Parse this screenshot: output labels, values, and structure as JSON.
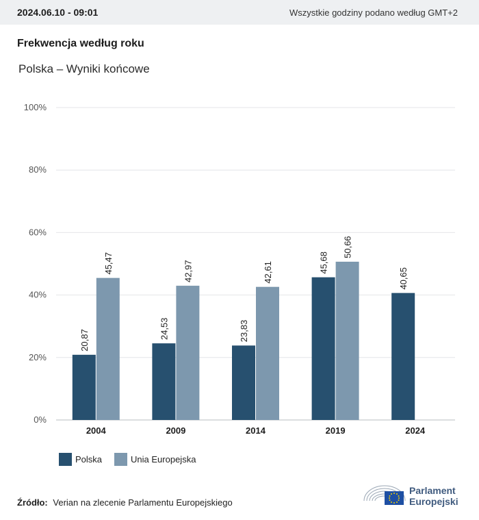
{
  "header": {
    "datetime": "2024.06.10 - 09:01",
    "timezone_note": "Wszystkie godziny podano według GMT+2"
  },
  "title": "Frekwencja według roku",
  "subtitle": "Polska – Wyniki końcowe",
  "chart_data": {
    "type": "bar",
    "categories": [
      "2004",
      "2009",
      "2014",
      "2019",
      "2024"
    ],
    "series": [
      {
        "name": "Polska",
        "color": "#27506f",
        "values": [
          20.87,
          24.53,
          23.83,
          45.68,
          40.65
        ]
      },
      {
        "name": "Unia Europejska",
        "color": "#7d98ae",
        "values": [
          45.47,
          42.97,
          42.61,
          50.66,
          null
        ]
      }
    ],
    "value_labels": {
      "Polska": [
        "20,87",
        "24,53",
        "23,83",
        "45,68",
        "40,65"
      ],
      "Unia Europejska": [
        "45,47",
        "42,97",
        "42,61",
        "50,66",
        ""
      ]
    },
    "y_ticks": [
      "0%",
      "20%",
      "40%",
      "60%",
      "80%",
      "100%"
    ],
    "ylim": [
      0,
      100
    ],
    "grid": true,
    "legend_position": "bottom-left"
  },
  "legend": [
    {
      "label": "Polska",
      "color": "#27506f"
    },
    {
      "label": "Unia Europejska",
      "color": "#7d98ae"
    }
  ],
  "source": {
    "label": "Źródło:",
    "text": "Verian na zlecenie Parlamentu Europejskiego"
  },
  "logo": {
    "line1": "Parlament",
    "line2": "Europejski"
  }
}
